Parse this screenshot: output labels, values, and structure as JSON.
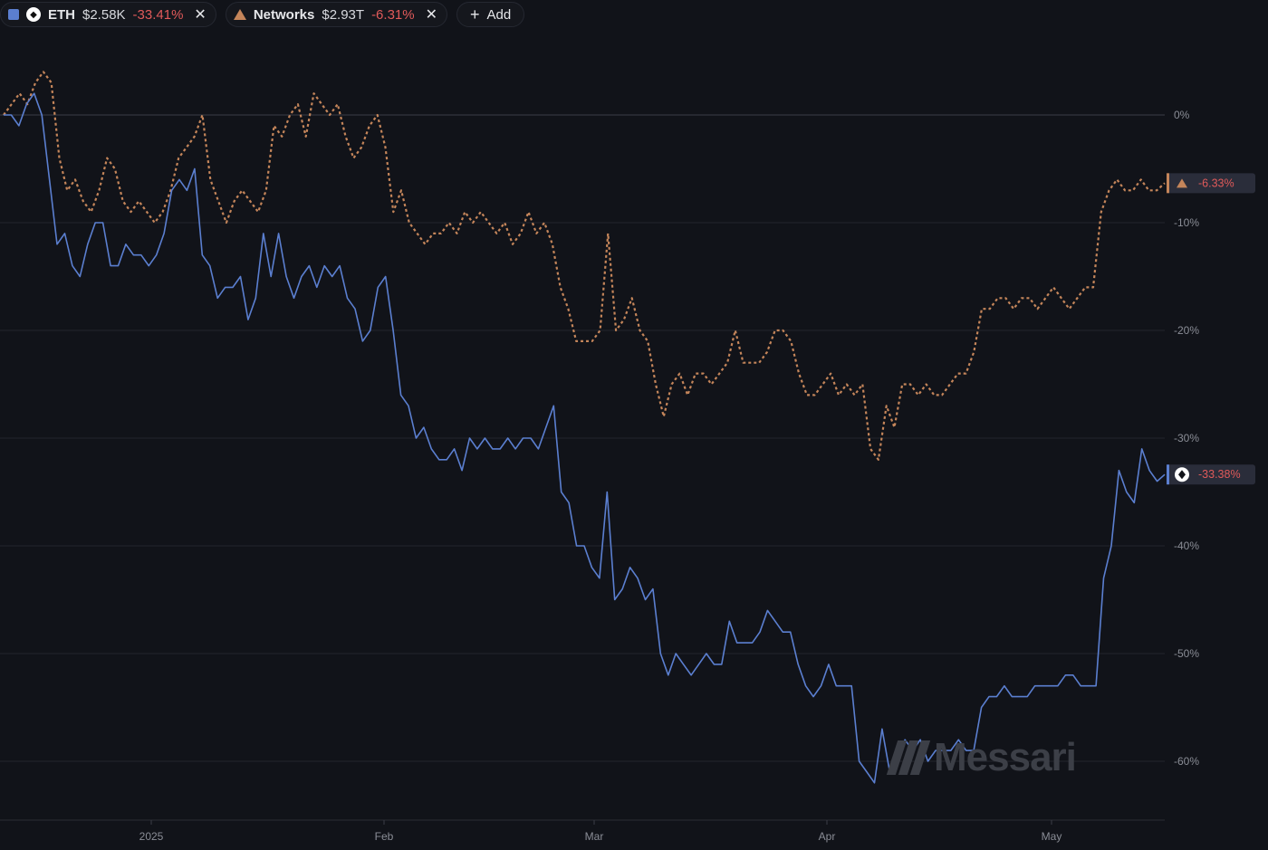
{
  "legend": [
    {
      "color": "#5b7fd0",
      "icon": "eth-icon",
      "name": "ETH",
      "price": "$2.58K",
      "change": "-33.41%"
    },
    {
      "color": "#c4855a",
      "icon": "triangle-icon",
      "name": "Networks",
      "price": "$2.93T",
      "change": "-6.31%"
    }
  ],
  "add_label": "Add",
  "close_glyph": "✕",
  "watermark": "Messari",
  "chart_data": {
    "type": "line",
    "x_labels": [
      "2025",
      "Feb",
      "Mar",
      "Apr",
      "May"
    ],
    "y_ticks": [
      "0%",
      "-10%",
      "-20%",
      "-30%",
      "-40%",
      "-50%",
      "-60%"
    ],
    "ylim": [
      -66,
      10
    ],
    "grid": true,
    "series": [
      {
        "name": "Networks",
        "color": "#c4855a",
        "style": "dotted",
        "end_label": "-6.33%",
        "values": [
          0,
          1,
          2,
          1,
          3,
          4,
          3,
          -4,
          -7,
          -6,
          -8,
          -9,
          -7,
          -4,
          -5,
          -8,
          -9,
          -8,
          -9,
          -10,
          -9,
          -7,
          -4,
          -3,
          -2,
          0,
          -6,
          -8,
          -10,
          -8,
          -7,
          -8,
          -9,
          -7,
          -1,
          -2,
          0,
          1,
          -2,
          2,
          1,
          0,
          1,
          -2,
          -4,
          -3,
          -1,
          0,
          -3,
          -9,
          -7,
          -10,
          -11,
          -12,
          -11,
          -11,
          -10,
          -11,
          -9,
          -10,
          -9,
          -10,
          -11,
          -10,
          -12,
          -11,
          -9,
          -11,
          -10,
          -12,
          -16,
          -18,
          -21,
          -21,
          -21,
          -20,
          -11,
          -20,
          -19,
          -17,
          -20,
          -21,
          -25,
          -28,
          -25,
          -24,
          -26,
          -24,
          -24,
          -25,
          -24,
          -23,
          -20,
          -23,
          -23,
          -23,
          -22,
          -20,
          -20,
          -21,
          -24,
          -26,
          -26,
          -25,
          -24,
          -26,
          -25,
          -26,
          -25,
          -31,
          -32,
          -27,
          -29,
          -25,
          -25,
          -26,
          -25,
          -26,
          -26,
          -25,
          -24,
          -24,
          -22,
          -18,
          -18,
          -17,
          -17,
          -18,
          -17,
          -17,
          -18,
          -17,
          -16,
          -17,
          -18,
          -17,
          -16,
          -16,
          -9,
          -7,
          -6,
          -7,
          -7,
          -6,
          -7,
          -7,
          -6.33
        ],
        "dates_index_note": ""
      },
      {
        "name": "ETH",
        "color": "#5b7fd0",
        "style": "solid",
        "end_label": "-33.38%",
        "values": [
          0,
          0,
          -1,
          1,
          2,
          0,
          -6,
          -12,
          -11,
          -14,
          -15,
          -12,
          -10,
          -10,
          -14,
          -14,
          -12,
          -13,
          -13,
          -14,
          -13,
          -11,
          -7,
          -6,
          -7,
          -5,
          -13,
          -14,
          -17,
          -16,
          -16,
          -15,
          -19,
          -17,
          -11,
          -15,
          -11,
          -15,
          -17,
          -15,
          -14,
          -16,
          -14,
          -15,
          -14,
          -17,
          -18,
          -21,
          -20,
          -16,
          -15,
          -20,
          -26,
          -27,
          -30,
          -29,
          -31,
          -32,
          -32,
          -31,
          -33,
          -30,
          -31,
          -30,
          -31,
          -31,
          -30,
          -31,
          -30,
          -30,
          -31,
          -29,
          -27,
          -35,
          -36,
          -40,
          -40,
          -42,
          -43,
          -35,
          -45,
          -44,
          -42,
          -43,
          -45,
          -44,
          -50,
          -52,
          -50,
          -51,
          -52,
          -51,
          -50,
          -51,
          -51,
          -47,
          -49,
          -49,
          -49,
          -48,
          -46,
          -47,
          -48,
          -48,
          -51,
          -53,
          -54,
          -53,
          -51,
          -53,
          -53,
          -53,
          -60,
          -61,
          -62,
          -57,
          -61,
          -60,
          -58,
          -59,
          -58,
          -60,
          -59,
          -59,
          -59,
          -58,
          -59,
          -59,
          -55,
          -54,
          -54,
          -53,
          -54,
          -54,
          -54,
          -53,
          -53,
          -53,
          -53,
          -52,
          -52,
          -53,
          -53,
          -53,
          -43,
          -40,
          -33,
          -35,
          -36,
          -31,
          -33,
          -34,
          -33.38
        ]
      }
    ]
  }
}
